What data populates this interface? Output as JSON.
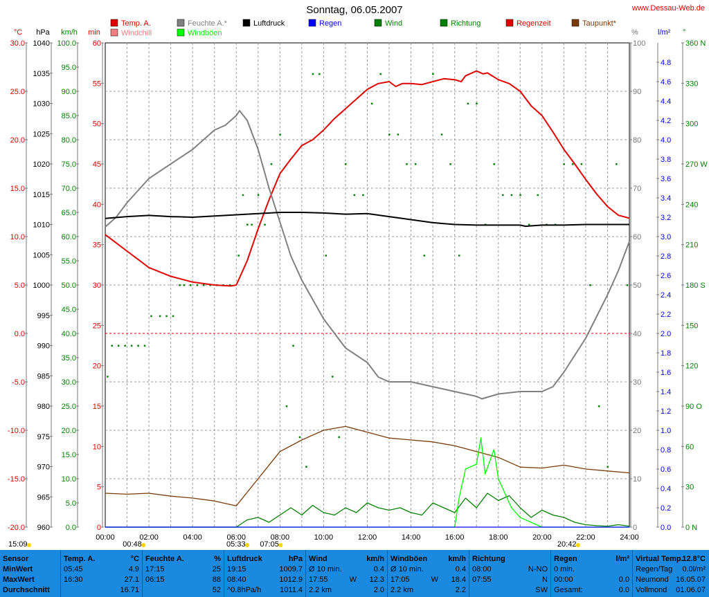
{
  "title": "Sonntag, 06.05.2007",
  "site": "www.Dessau-Web.de",
  "colors": {
    "temp": "#e00000",
    "humidity": "#808080",
    "pressure": "#000000",
    "rain": "#0000ff",
    "wind": "#008000",
    "gust": "#00ff00",
    "dew": "#7a3b08",
    "zero_line": "#e00000",
    "footer": "#1a8ae0"
  },
  "legend": [
    {
      "label": "Temp. A.",
      "color": "#e00000"
    },
    {
      "label": "Windchill",
      "color": "#f08080"
    },
    {
      "label": "Feuchte A.*",
      "color": "#808080"
    },
    {
      "label": "Windböen",
      "color": "#00ff00"
    },
    {
      "label": "Luftdruck",
      "color": "#000000"
    },
    {
      "label": "Regen",
      "color": "#0000ff"
    },
    {
      "label": "Wind",
      "color": "#008000"
    },
    {
      "label": "Richtung",
      "color": "#008000"
    },
    {
      "label": "Regenzeit",
      "color": "#e00000"
    },
    {
      "label": "Taupunkt*",
      "color": "#7a3b08"
    }
  ],
  "axis_units": {
    "temp": "°C",
    "pressure": "hPa",
    "wind": "km/h",
    "rain_time": "min",
    "humidity": "%",
    "rain": "l/m²",
    "direction": "°"
  },
  "axes": {
    "temp": {
      "ticks": [
        "30.0",
        "25.0",
        "20.0",
        "15.0",
        "10.0",
        "5.0",
        "0.0",
        "-5.0",
        "-10.0",
        "-15.0",
        "-20.0"
      ]
    },
    "pressure": {
      "ticks": [
        "1040",
        "1035",
        "1030",
        "1025",
        "1020",
        "1015",
        "1010",
        "1005",
        "1000",
        "995",
        "990",
        "985",
        "980",
        "975",
        "970",
        "965",
        "960"
      ]
    },
    "wind": {
      "ticks": [
        "100.0",
        "95.0",
        "90.0",
        "85.0",
        "80.0",
        "75.0",
        "70.0",
        "65.0",
        "60.0",
        "55.0",
        "50.0",
        "45.0",
        "40.0",
        "35.0",
        "30.0",
        "25.0",
        "20.0",
        "15.0",
        "10.0",
        "5.0",
        "0.0"
      ]
    },
    "rain_time": {
      "ticks": [
        "60",
        "55",
        "50",
        "45",
        "40",
        "35",
        "30",
        "25",
        "20",
        "15",
        "10",
        "5",
        "0"
      ]
    },
    "humidity": {
      "ticks": [
        "100",
        "90",
        "80",
        "70",
        "60",
        "50",
        "40",
        "30",
        "20",
        "10",
        "0"
      ]
    },
    "rain": {
      "ticks": [
        "4.8",
        "4.6",
        "4.4",
        "4.2",
        "4.0",
        "3.8",
        "3.6",
        "3.4",
        "3.2",
        "3.0",
        "2.8",
        "2.6",
        "2.4",
        "2.2",
        "2.0",
        "1.8",
        "1.6",
        "1.4",
        "1.2",
        "1.0",
        "0.8",
        "0.6",
        "0.4",
        "0.2",
        "0.0"
      ]
    },
    "direction": {
      "ticks": [
        "360 N",
        "330",
        "300",
        "270 W",
        "240",
        "210",
        "180 S",
        "150",
        "120",
        "90 O",
        "60",
        "30",
        "0 N"
      ]
    },
    "time": {
      "ticks": [
        "00:00",
        "02:00",
        "04:00",
        "06:00",
        "08:00",
        "10:00",
        "12:00",
        "14:00",
        "16:00",
        "18:00",
        "20:00",
        "22:00",
        "24:00"
      ]
    }
  },
  "sun_moon": [
    {
      "label": "15:09",
      "hour": -3.5
    },
    {
      "label": "00:48",
      "hour": 0.8
    },
    {
      "label": "05:33",
      "hour": 5.55
    },
    {
      "label": "07:05",
      "hour": 7.08
    },
    {
      "label": "20:42",
      "hour": 20.7
    }
  ],
  "chart_data": {
    "type": "line",
    "title": "Sonntag, 06.05.2007",
    "x_unit": "hour",
    "xlim": [
      0,
      24
    ],
    "series": [
      {
        "name": "Temp. A.",
        "unit": "°C",
        "color": "#e00000",
        "ylim": [
          -20,
          30
        ],
        "x": [
          0,
          1,
          2,
          3,
          4,
          5,
          5.75,
          6,
          6.5,
          7,
          7.5,
          8,
          8.5,
          9,
          9.5,
          10,
          10.5,
          11,
          11.5,
          12,
          12.5,
          13,
          13.3,
          13.6,
          14,
          14.5,
          15,
          15.5,
          16,
          16.3,
          16.5,
          17,
          17.3,
          17.5,
          18,
          18.5,
          19,
          19.5,
          20,
          20.5,
          21,
          21.5,
          22,
          22.5,
          23,
          23.5,
          24
        ],
        "y": [
          10.2,
          8.5,
          6.8,
          5.9,
          5.3,
          5.0,
          4.9,
          5.0,
          7.5,
          10.8,
          13.8,
          16.5,
          18.0,
          19.4,
          20.0,
          21.0,
          22.2,
          23.2,
          24.2,
          25.2,
          25.8,
          26.0,
          25.5,
          25.8,
          25.8,
          25.7,
          26.0,
          26.3,
          26.2,
          26.0,
          26.6,
          27.1,
          26.8,
          26.9,
          26.2,
          25.8,
          25.0,
          23.5,
          22.5,
          20.8,
          19.0,
          17.5,
          15.9,
          14.4,
          13.1,
          12.2,
          11.9
        ]
      },
      {
        "name": "Feuchte A.*",
        "unit": "%",
        "color": "#808080",
        "ylim": [
          0,
          100
        ],
        "x": [
          0,
          0.5,
          1,
          2,
          3,
          4,
          5,
          5.5,
          6,
          6.15,
          6.5,
          7,
          7.5,
          8,
          8.5,
          9,
          10,
          11,
          12,
          12.5,
          13,
          14,
          15,
          16,
          17,
          17.25,
          18,
          19,
          20,
          20.5,
          21,
          22,
          23,
          23.5,
          24
        ],
        "y": [
          62,
          64,
          67,
          72,
          75,
          78,
          82,
          83,
          85,
          86,
          84,
          78,
          70,
          63,
          56,
          51,
          43,
          37,
          34,
          31,
          30,
          30,
          29,
          28,
          27,
          26.5,
          27.5,
          28,
          28,
          29,
          32,
          39,
          48,
          53,
          59
        ]
      },
      {
        "name": "Luftdruck",
        "unit": "hPa",
        "color": "#000000",
        "ylim": [
          960,
          1040
        ],
        "x": [
          0,
          1,
          2,
          3,
          4,
          5,
          6,
          7,
          8,
          9,
          10,
          11,
          12,
          13,
          14,
          15,
          16,
          17,
          18,
          19,
          19.25,
          20,
          21,
          22,
          23,
          24
        ],
        "y": [
          1011.0,
          1011.3,
          1011.5,
          1011.3,
          1011.2,
          1011.4,
          1011.6,
          1011.8,
          1012.0,
          1012.0,
          1011.9,
          1011.7,
          1011.8,
          1011.3,
          1010.8,
          1010.3,
          1010.0,
          1009.9,
          1009.9,
          1009.9,
          1009.7,
          1009.9,
          1009.9,
          1010.0,
          1010.0,
          1010.0
        ]
      },
      {
        "name": "Taupunkt*",
        "unit": "°C",
        "color": "#7a3b08",
        "ylim": [
          -20,
          30
        ],
        "x": [
          0,
          1,
          2,
          3,
          4,
          5,
          6,
          7,
          8,
          9,
          10,
          11,
          12,
          13,
          14,
          15,
          16,
          17,
          18,
          19,
          20,
          21,
          22,
          23,
          24
        ],
        "y": [
          -16.5,
          -16.6,
          -16.5,
          -16.8,
          -17.0,
          -17.3,
          -17.8,
          -15.0,
          -12.2,
          -11.0,
          -10.0,
          -9.6,
          -10.2,
          -10.8,
          -11.0,
          -11.2,
          -11.6,
          -12.2,
          -12.8,
          -13.8,
          -13.9,
          -13.6,
          -14.0,
          -14.2,
          -14.4
        ]
      },
      {
        "name": "Wind",
        "unit": "km/h",
        "color": "#008000",
        "ylim": [
          0,
          100
        ],
        "x": [
          0,
          6,
          6.5,
          7,
          7.5,
          8,
          8.5,
          9,
          9.5,
          10,
          10.5,
          11,
          11.5,
          12,
          12.5,
          13,
          13.5,
          14,
          14.5,
          15,
          15.5,
          16,
          16.5,
          17,
          17.5,
          18,
          18.5,
          19,
          19.5,
          20,
          20.5,
          21,
          21.5,
          22,
          22.5,
          23,
          23.5,
          24
        ],
        "y": [
          0,
          0,
          1.5,
          2.0,
          1.0,
          2.5,
          4.0,
          2.5,
          4.5,
          3.0,
          2.5,
          4.0,
          3.0,
          5.0,
          4.0,
          3.5,
          4.0,
          3.0,
          2.5,
          5.0,
          4.0,
          3.0,
          6.0,
          4.0,
          7.0,
          5.5,
          6.5,
          4.0,
          2.0,
          3.5,
          2.5,
          2.0,
          1.0,
          0.5,
          0.3,
          0.2,
          0.5,
          0.2
        ]
      },
      {
        "name": "Windböen",
        "unit": "km/h",
        "color": "#00ff00",
        "ylim": [
          0,
          100
        ],
        "x": [
          0,
          16,
          16.2,
          16.5,
          17,
          17.2,
          17.4,
          17.8,
          18,
          18.3,
          18.6,
          19,
          20,
          24
        ],
        "y": [
          0,
          0,
          6.0,
          12.0,
          13.0,
          18.4,
          11.0,
          16.0,
          10.0,
          7.0,
          4.0,
          2.0,
          0,
          0
        ]
      },
      {
        "name": "Regen",
        "unit": "l/m²",
        "color": "#0000ff",
        "ylim": [
          0,
          5
        ],
        "x": [
          0,
          24
        ],
        "y": [
          0.0,
          0.0
        ]
      }
    ],
    "direction_points": {
      "unit": "°",
      "ylim": [
        0,
        360
      ],
      "x": [
        0.1,
        0.3,
        0.6,
        0.9,
        1.2,
        1.5,
        1.8,
        2.1,
        2.5,
        2.8,
        3.1,
        3.4,
        3.6,
        3.9,
        4.2,
        4.5,
        4.8,
        5.1,
        5.4,
        5.7,
        6.1,
        6.3,
        6.5,
        6.7,
        7.0,
        7.3,
        7.6,
        8.0,
        8.3,
        8.6,
        8.9,
        9.2,
        9.5,
        9.8,
        10.1,
        10.4,
        10.7,
        11.0,
        11.4,
        11.8,
        12.2,
        12.6,
        13.0,
        13.4,
        13.8,
        14.2,
        14.6,
        15.0,
        15.4,
        15.8,
        16.2,
        16.6,
        17.0,
        17.4,
        17.8,
        18.2,
        18.6,
        19.0,
        19.4,
        19.8,
        20.2,
        20.6,
        21.0,
        21.4,
        21.8,
        22.2,
        22.6,
        23.0,
        23.4,
        23.9
      ],
      "y": [
        112,
        135,
        135,
        135,
        135,
        135,
        135,
        157,
        157,
        157,
        157,
        180,
        180,
        180,
        180,
        180,
        180,
        180,
        180,
        180,
        202,
        247,
        225,
        225,
        247,
        225,
        270,
        292,
        90,
        135,
        67,
        45,
        337,
        337,
        202,
        112,
        67,
        270,
        247,
        247,
        315,
        337,
        292,
        292,
        270,
        270,
        202,
        337,
        292,
        270,
        202,
        315,
        315,
        225,
        270,
        247,
        247,
        247,
        225,
        247,
        225,
        225,
        270,
        270,
        270,
        180,
        90,
        45,
        270,
        180
      ]
    }
  },
  "footer": [
    {
      "header": "Sensor",
      "unit": "",
      "rows": [
        [
          "MinWert",
          "",
          ""
        ],
        [
          "MaxWert",
          "",
          ""
        ],
        [
          "Durchschnitt",
          "",
          ""
        ]
      ]
    },
    {
      "header": "Temp. A.",
      "unit": "°C",
      "rows": [
        [
          "05:45",
          "",
          "4.9"
        ],
        [
          "16:30",
          "",
          "27.1"
        ],
        [
          "",
          "",
          "16.71"
        ]
      ]
    },
    {
      "header": "Feuchte A.",
      "unit": "%",
      "rows": [
        [
          "17:15",
          "",
          "25"
        ],
        [
          "06:15",
          "",
          "88"
        ],
        [
          "",
          "",
          "52"
        ]
      ]
    },
    {
      "header": "Luftdruck",
      "unit": "hPa",
      "rows": [
        [
          "19:15",
          "",
          "1009.7"
        ],
        [
          "08:40",
          "",
          "1012.9"
        ],
        [
          "^0.8hPa/h",
          "",
          "1011.4"
        ]
      ]
    },
    {
      "header": "Wind",
      "unit": "km/h",
      "rows": [
        [
          "Ø 10 min.",
          "",
          "0.4"
        ],
        [
          "17:55",
          "W",
          "12.3"
        ],
        [
          "2.2 km",
          "",
          "2.0"
        ]
      ]
    },
    {
      "header": "Windböen",
      "unit": "km/h",
      "rows": [
        [
          "Ø 10 min.",
          "",
          "0.4"
        ],
        [
          "17:05",
          "W",
          "18.4"
        ],
        [
          "2.2 km",
          "",
          "2.2"
        ]
      ]
    },
    {
      "header": "Richtung",
      "unit": "",
      "rows": [
        [
          "08:00",
          "",
          "N-NO"
        ],
        [
          "07:55",
          "",
          "N"
        ],
        [
          "",
          "",
          "SW"
        ]
      ]
    },
    {
      "header": "Regen",
      "unit": "l/m²",
      "rows": [
        [
          "0 min.",
          "",
          ""
        ],
        [
          "00:00",
          "",
          "0.0"
        ],
        [
          "Gesamt:",
          "",
          "0.0"
        ]
      ]
    },
    {
      "header": "Virtual Temp.",
      "unit": "12.8°C",
      "rows": [
        [
          "Regen/Tag",
          "",
          "0.0l/m²"
        ],
        [
          "Neumond",
          "",
          "16.05.07"
        ],
        [
          "Vollmond",
          "",
          "01.06.07"
        ]
      ]
    }
  ]
}
